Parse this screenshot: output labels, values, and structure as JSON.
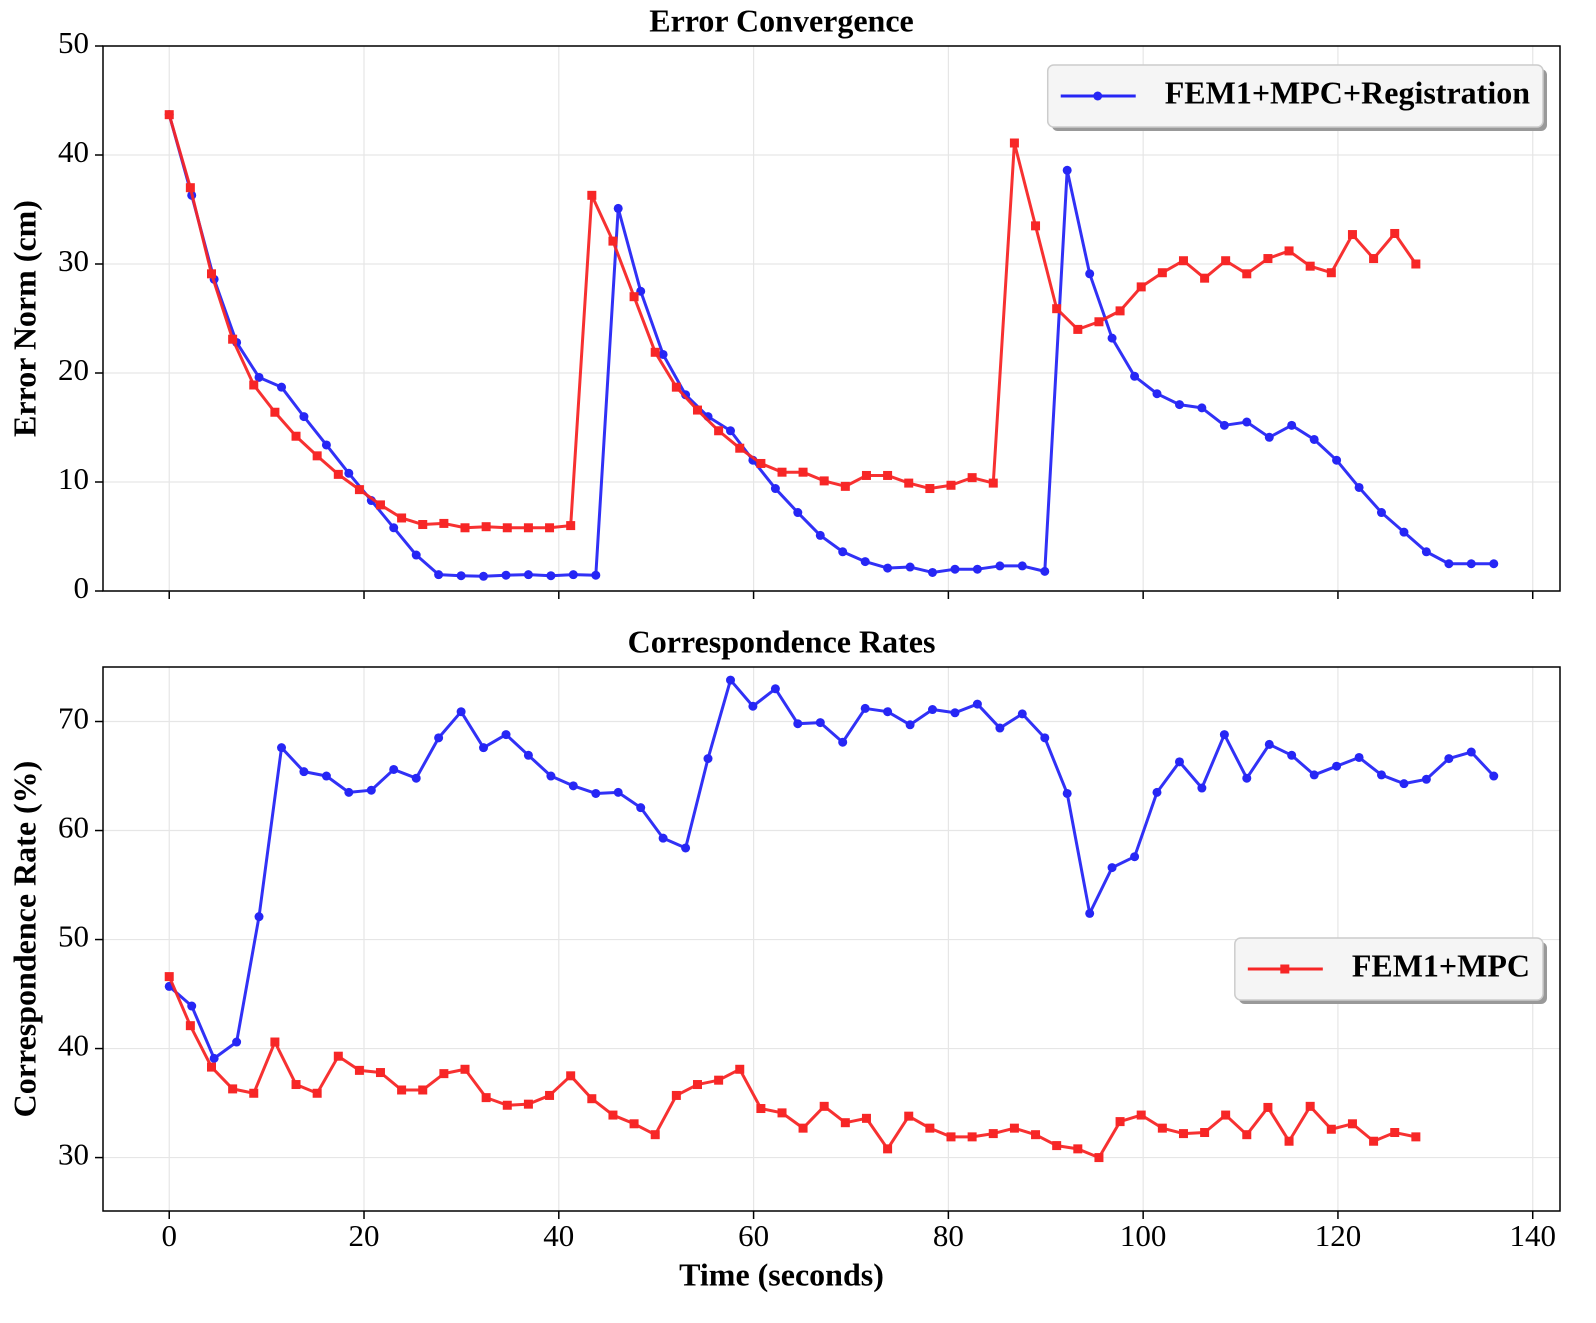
{
  "chart_data": [
    {
      "type": "line",
      "title": "Error Convergence",
      "ylabel": "Error Norm (cm)",
      "xlim": [
        -6.8,
        142.8
      ],
      "ylim": [
        0,
        50
      ],
      "xticks": [
        0,
        20,
        40,
        60,
        80,
        100,
        120,
        140
      ],
      "yticks": [
        0,
        10,
        20,
        30,
        40,
        50
      ],
      "show_xticklabels": false,
      "grid": true,
      "legend": {
        "loc": "upper right",
        "series": [
          0
        ]
      },
      "series": [
        {
          "name": "FEM1+MPC+Registration",
          "color": "#2626f5",
          "marker": "circle",
          "x": [
            0,
            2.31,
            4.61,
            6.92,
            9.22,
            11.53,
            13.83,
            16.14,
            18.44,
            20.75,
            23.05,
            25.36,
            27.66,
            29.97,
            32.27,
            34.58,
            36.88,
            39.19,
            41.49,
            43.8,
            46.1,
            48.41,
            50.71,
            53.02,
            55.32,
            57.63,
            59.93,
            62.24,
            64.54,
            66.85,
            69.15,
            71.46,
            73.76,
            76.07,
            78.37,
            80.68,
            82.98,
            85.29,
            87.59,
            89.9,
            92.2,
            94.51,
            96.81,
            99.12,
            101.42,
            103.73,
            106.03,
            108.34,
            110.64,
            112.95,
            115.25,
            117.56,
            119.86,
            122.17,
            124.47,
            126.78,
            129.08,
            131.39,
            133.69,
            136
          ],
          "values": [
            43.7,
            36.3,
            28.6,
            22.8,
            19.6,
            18.7,
            16.0,
            13.4,
            10.8,
            8.3,
            5.8,
            3.3,
            1.5,
            1.4,
            1.35,
            1.45,
            1.5,
            1.4,
            1.5,
            1.45,
            35.1,
            27.5,
            21.7,
            18.0,
            16.0,
            14.7,
            12.0,
            9.4,
            7.2,
            5.1,
            3.6,
            2.7,
            2.1,
            2.2,
            1.7,
            2.0,
            2.0,
            2.3,
            2.3,
            1.8,
            38.6,
            29.1,
            23.2,
            19.7,
            18.1,
            17.1,
            16.8,
            15.2,
            15.5,
            14.1,
            15.2,
            13.9,
            12.0,
            9.5,
            7.2,
            5.4,
            3.6,
            2.5,
            2.5,
            2.5
          ]
        },
        {
          "name": "FEM1+MPC",
          "color": "#f72626",
          "marker": "square",
          "x": [
            0,
            2.17,
            4.34,
            6.51,
            8.68,
            10.85,
            13.02,
            15.19,
            17.36,
            19.53,
            21.69,
            23.86,
            26.03,
            28.2,
            30.37,
            32.54,
            34.71,
            36.88,
            39.05,
            41.22,
            43.39,
            45.56,
            47.73,
            49.9,
            52.07,
            54.24,
            56.41,
            58.58,
            60.75,
            62.92,
            65.08,
            67.25,
            69.42,
            71.59,
            73.76,
            75.93,
            78.1,
            80.27,
            82.44,
            84.61,
            86.78,
            88.95,
            91.12,
            93.29,
            95.46,
            97.63,
            99.8,
            101.97,
            104.14,
            106.31,
            108.47,
            110.64,
            112.81,
            114.98,
            117.15,
            119.32,
            121.49,
            123.66,
            125.83,
            128
          ],
          "values": [
            43.7,
            37.0,
            29.1,
            23.1,
            18.9,
            16.4,
            14.2,
            12.4,
            10.7,
            9.3,
            7.9,
            6.7,
            6.1,
            6.2,
            5.8,
            5.9,
            5.8,
            5.8,
            5.8,
            6.0,
            36.3,
            32.1,
            27.0,
            21.9,
            18.7,
            16.6,
            14.7,
            13.1,
            11.7,
            10.9,
            10.9,
            10.1,
            9.6,
            10.6,
            10.6,
            9.9,
            9.4,
            9.7,
            10.4,
            9.9,
            41.1,
            33.5,
            25.9,
            24.0,
            24.7,
            25.7,
            27.9,
            29.2,
            30.3,
            28.7,
            30.3,
            29.1,
            30.5,
            31.2,
            29.8,
            29.2,
            32.7,
            30.5,
            32.8,
            30.0
          ]
        }
      ]
    },
    {
      "type": "line",
      "title": "Correspondence Rates",
      "ylabel": "Correspondence Rate (%)",
      "xlabel": "Time (seconds)",
      "xlim": [
        -6.8,
        142.8
      ],
      "ylim": [
        25.1,
        75.0
      ],
      "xticks": [
        0,
        20,
        40,
        60,
        80,
        100,
        120,
        140
      ],
      "yticks": [
        30,
        40,
        50,
        60,
        70
      ],
      "show_xticklabels": true,
      "grid": true,
      "legend": {
        "loc": "center right",
        "series": [
          1
        ]
      },
      "series": [
        {
          "name": "FEM1+MPC+Registration",
          "color": "#2626f5",
          "marker": "circle",
          "x": [
            0,
            2.31,
            4.61,
            6.92,
            9.22,
            11.53,
            13.83,
            16.14,
            18.44,
            20.75,
            23.05,
            25.36,
            27.66,
            29.97,
            32.27,
            34.58,
            36.88,
            39.19,
            41.49,
            43.8,
            46.1,
            48.41,
            50.71,
            53.02,
            55.32,
            57.63,
            59.93,
            62.24,
            64.54,
            66.85,
            69.15,
            71.46,
            73.76,
            76.07,
            78.37,
            80.68,
            82.98,
            85.29,
            87.59,
            89.9,
            92.2,
            94.51,
            96.81,
            99.12,
            101.42,
            103.73,
            106.03,
            108.34,
            110.64,
            112.95,
            115.25,
            117.56,
            119.86,
            122.17,
            124.47,
            126.78,
            129.08,
            131.39,
            133.69,
            136
          ],
          "values": [
            45.7,
            43.9,
            39.1,
            40.6,
            52.1,
            67.6,
            65.4,
            65.0,
            63.5,
            63.7,
            65.6,
            64.8,
            68.5,
            70.9,
            67.6,
            68.8,
            66.9,
            65.0,
            64.1,
            63.4,
            63.5,
            62.1,
            59.3,
            58.4,
            66.6,
            73.8,
            71.4,
            73.0,
            69.8,
            69.9,
            68.1,
            71.2,
            70.9,
            69.7,
            71.1,
            70.8,
            71.6,
            69.4,
            70.7,
            68.5,
            63.4,
            52.4,
            56.6,
            57.6,
            63.5,
            66.3,
            63.9,
            68.8,
            64.8,
            67.9,
            66.9,
            65.1,
            65.9,
            66.7,
            65.1,
            64.3,
            64.7,
            66.6,
            67.2,
            65.0
          ]
        },
        {
          "name": "FEM1+MPC",
          "color": "#f72626",
          "marker": "square",
          "x": [
            0,
            2.17,
            4.34,
            6.51,
            8.68,
            10.85,
            13.02,
            15.19,
            17.36,
            19.53,
            21.69,
            23.86,
            26.03,
            28.2,
            30.37,
            32.54,
            34.71,
            36.88,
            39.05,
            41.22,
            43.39,
            45.56,
            47.73,
            49.9,
            52.07,
            54.24,
            56.41,
            58.58,
            60.75,
            62.92,
            65.08,
            67.25,
            69.42,
            71.59,
            73.76,
            75.93,
            78.1,
            80.27,
            82.44,
            84.61,
            86.78,
            88.95,
            91.12,
            93.29,
            95.46,
            97.63,
            99.8,
            101.97,
            104.14,
            106.31,
            108.47,
            110.64,
            112.81,
            114.98,
            117.15,
            119.32,
            121.49,
            123.66,
            125.83,
            128
          ],
          "values": [
            46.6,
            42.1,
            38.3,
            36.3,
            35.9,
            40.6,
            36.7,
            35.9,
            39.3,
            38.0,
            37.8,
            36.2,
            36.2,
            37.7,
            38.1,
            35.5,
            34.8,
            34.9,
            35.7,
            37.5,
            35.4,
            33.9,
            33.1,
            32.1,
            35.7,
            36.7,
            37.1,
            38.1,
            34.5,
            34.1,
            32.7,
            34.7,
            33.2,
            33.6,
            30.8,
            33.8,
            32.7,
            31.9,
            31.9,
            32.2,
            32.7,
            32.1,
            31.1,
            30.8,
            30.0,
            33.3,
            33.9,
            32.7,
            32.2,
            32.3,
            33.9,
            32.1,
            34.6,
            31.5,
            34.7,
            32.6,
            33.1,
            31.5,
            32.3,
            31.9
          ]
        }
      ]
    }
  ]
}
